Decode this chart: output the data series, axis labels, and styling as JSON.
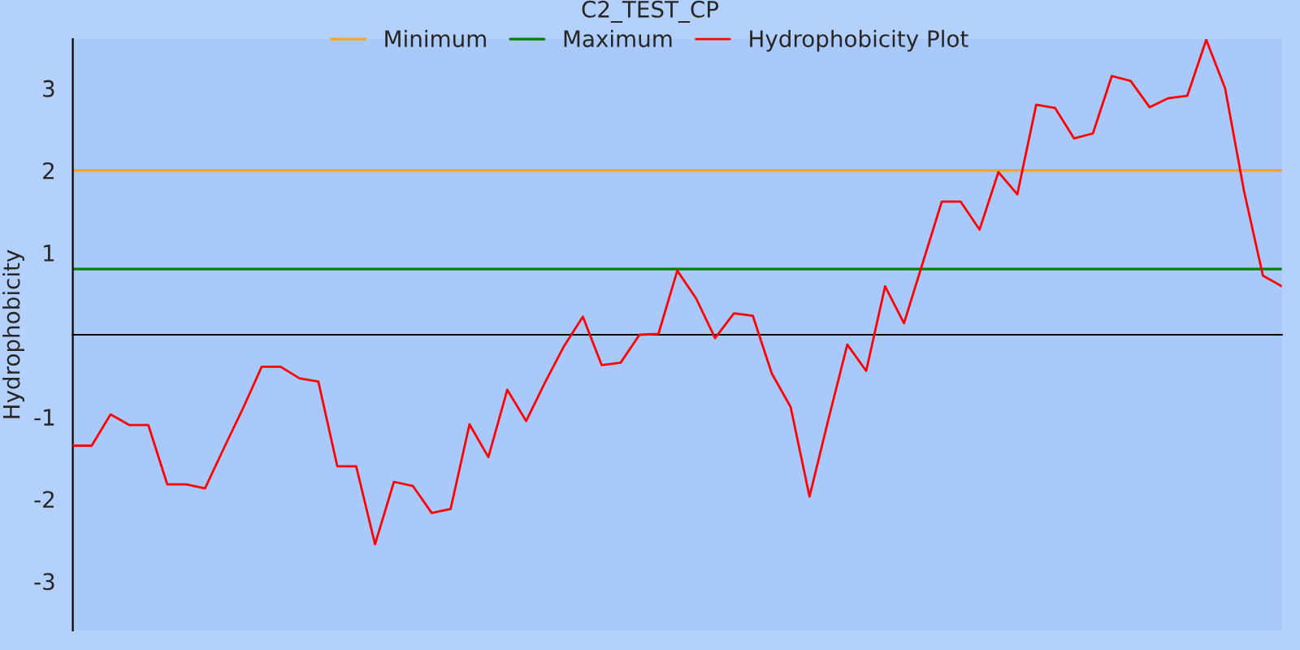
{
  "chart_data": {
    "type": "line",
    "title": "C2_TEST_CP",
    "ylabel": "Hydrophobicity",
    "categories": [
      null,
      null,
      null,
      null,
      null,
      null,
      null,
      null,
      null,
      null,
      null,
      null,
      null,
      null,
      null,
      null,
      null,
      null,
      null,
      null,
      null,
      null,
      null,
      null,
      null,
      null,
      null,
      null,
      null,
      null,
      null,
      null,
      null,
      null,
      null,
      null,
      null,
      null,
      null,
      null,
      null,
      null,
      null,
      null,
      null,
      null,
      null,
      null,
      null,
      null,
      null,
      null,
      null,
      null,
      null,
      null,
      null,
      null,
      null,
      null,
      null,
      null,
      null,
      null,
      null
    ],
    "series": [
      {
        "name": "Hydrophobicity Plot",
        "color": "#ff0000",
        "values": [
          -1.35,
          -1.35,
          -0.97,
          -1.1,
          -1.1,
          -1.82,
          -1.82,
          -1.87,
          -1.38,
          -0.9,
          -0.39,
          -0.39,
          -0.53,
          -0.57,
          -1.6,
          -1.6,
          -2.55,
          -1.79,
          -1.84,
          -2.17,
          -2.12,
          -1.09,
          -1.49,
          -0.67,
          -1.05,
          -0.58,
          -0.14,
          0.22,
          -0.37,
          -0.34,
          0.0,
          0.01,
          0.78,
          0.44,
          -0.04,
          0.26,
          0.23,
          -0.47,
          -0.88,
          -1.97,
          -1.03,
          -0.12,
          -0.44,
          0.59,
          0.14,
          0.88,
          1.62,
          1.62,
          1.28,
          1.98,
          1.71,
          2.8,
          2.76,
          2.39,
          2.45,
          3.15,
          3.09,
          2.77,
          2.88,
          2.91,
          3.59,
          3.0,
          1.75,
          0.72,
          0.59
        ]
      }
    ],
    "ref_lines": [
      {
        "axis": "y",
        "value": 2,
        "label": "Minimum",
        "color": "#f5a623"
      },
      {
        "axis": "y",
        "value": 0.8,
        "label": "Maximum",
        "color": "#008000"
      }
    ],
    "ylim": [
      -3.6,
      3.6
    ],
    "yticks": [
      -3,
      -2,
      -1,
      1,
      2,
      3
    ],
    "tick_labels": "y",
    "legend": "top",
    "grid": false,
    "marker": "none",
    "line_style": "solid"
  }
}
